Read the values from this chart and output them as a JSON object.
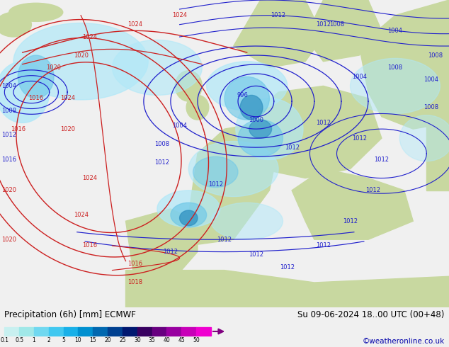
{
  "title_left": "Precipitation (6h) [mm] ECMWF",
  "title_right": "Su 09-06-2024 18..00 UTC (00+48)",
  "credit": "©weatheronline.co.uk",
  "colorbar_levels": [
    "0.1",
    "0.5",
    "1",
    "2",
    "5",
    "10",
    "15",
    "20",
    "25",
    "30",
    "35",
    "40",
    "45",
    "50"
  ],
  "colorbar_colors": [
    "#c8f0f0",
    "#a0e8e8",
    "#70d8f0",
    "#40c8f0",
    "#18b0e8",
    "#0090d0",
    "#0068b0",
    "#004090",
    "#001870",
    "#380060",
    "#680080",
    "#9800a0",
    "#c800b8",
    "#f000d0"
  ],
  "bg_color": "#f0f0f0",
  "ocean_color": "#e8f4fc",
  "land_color": "#c8d8a0",
  "precip_light": "#b0e8f8",
  "precip_mid": "#70c8e8",
  "precip_dark": "#3090c0",
  "precip_deep": "#1060a0",
  "credit_color": "#0000aa",
  "isobar_blue": "#2020cc",
  "isobar_red": "#cc2020"
}
